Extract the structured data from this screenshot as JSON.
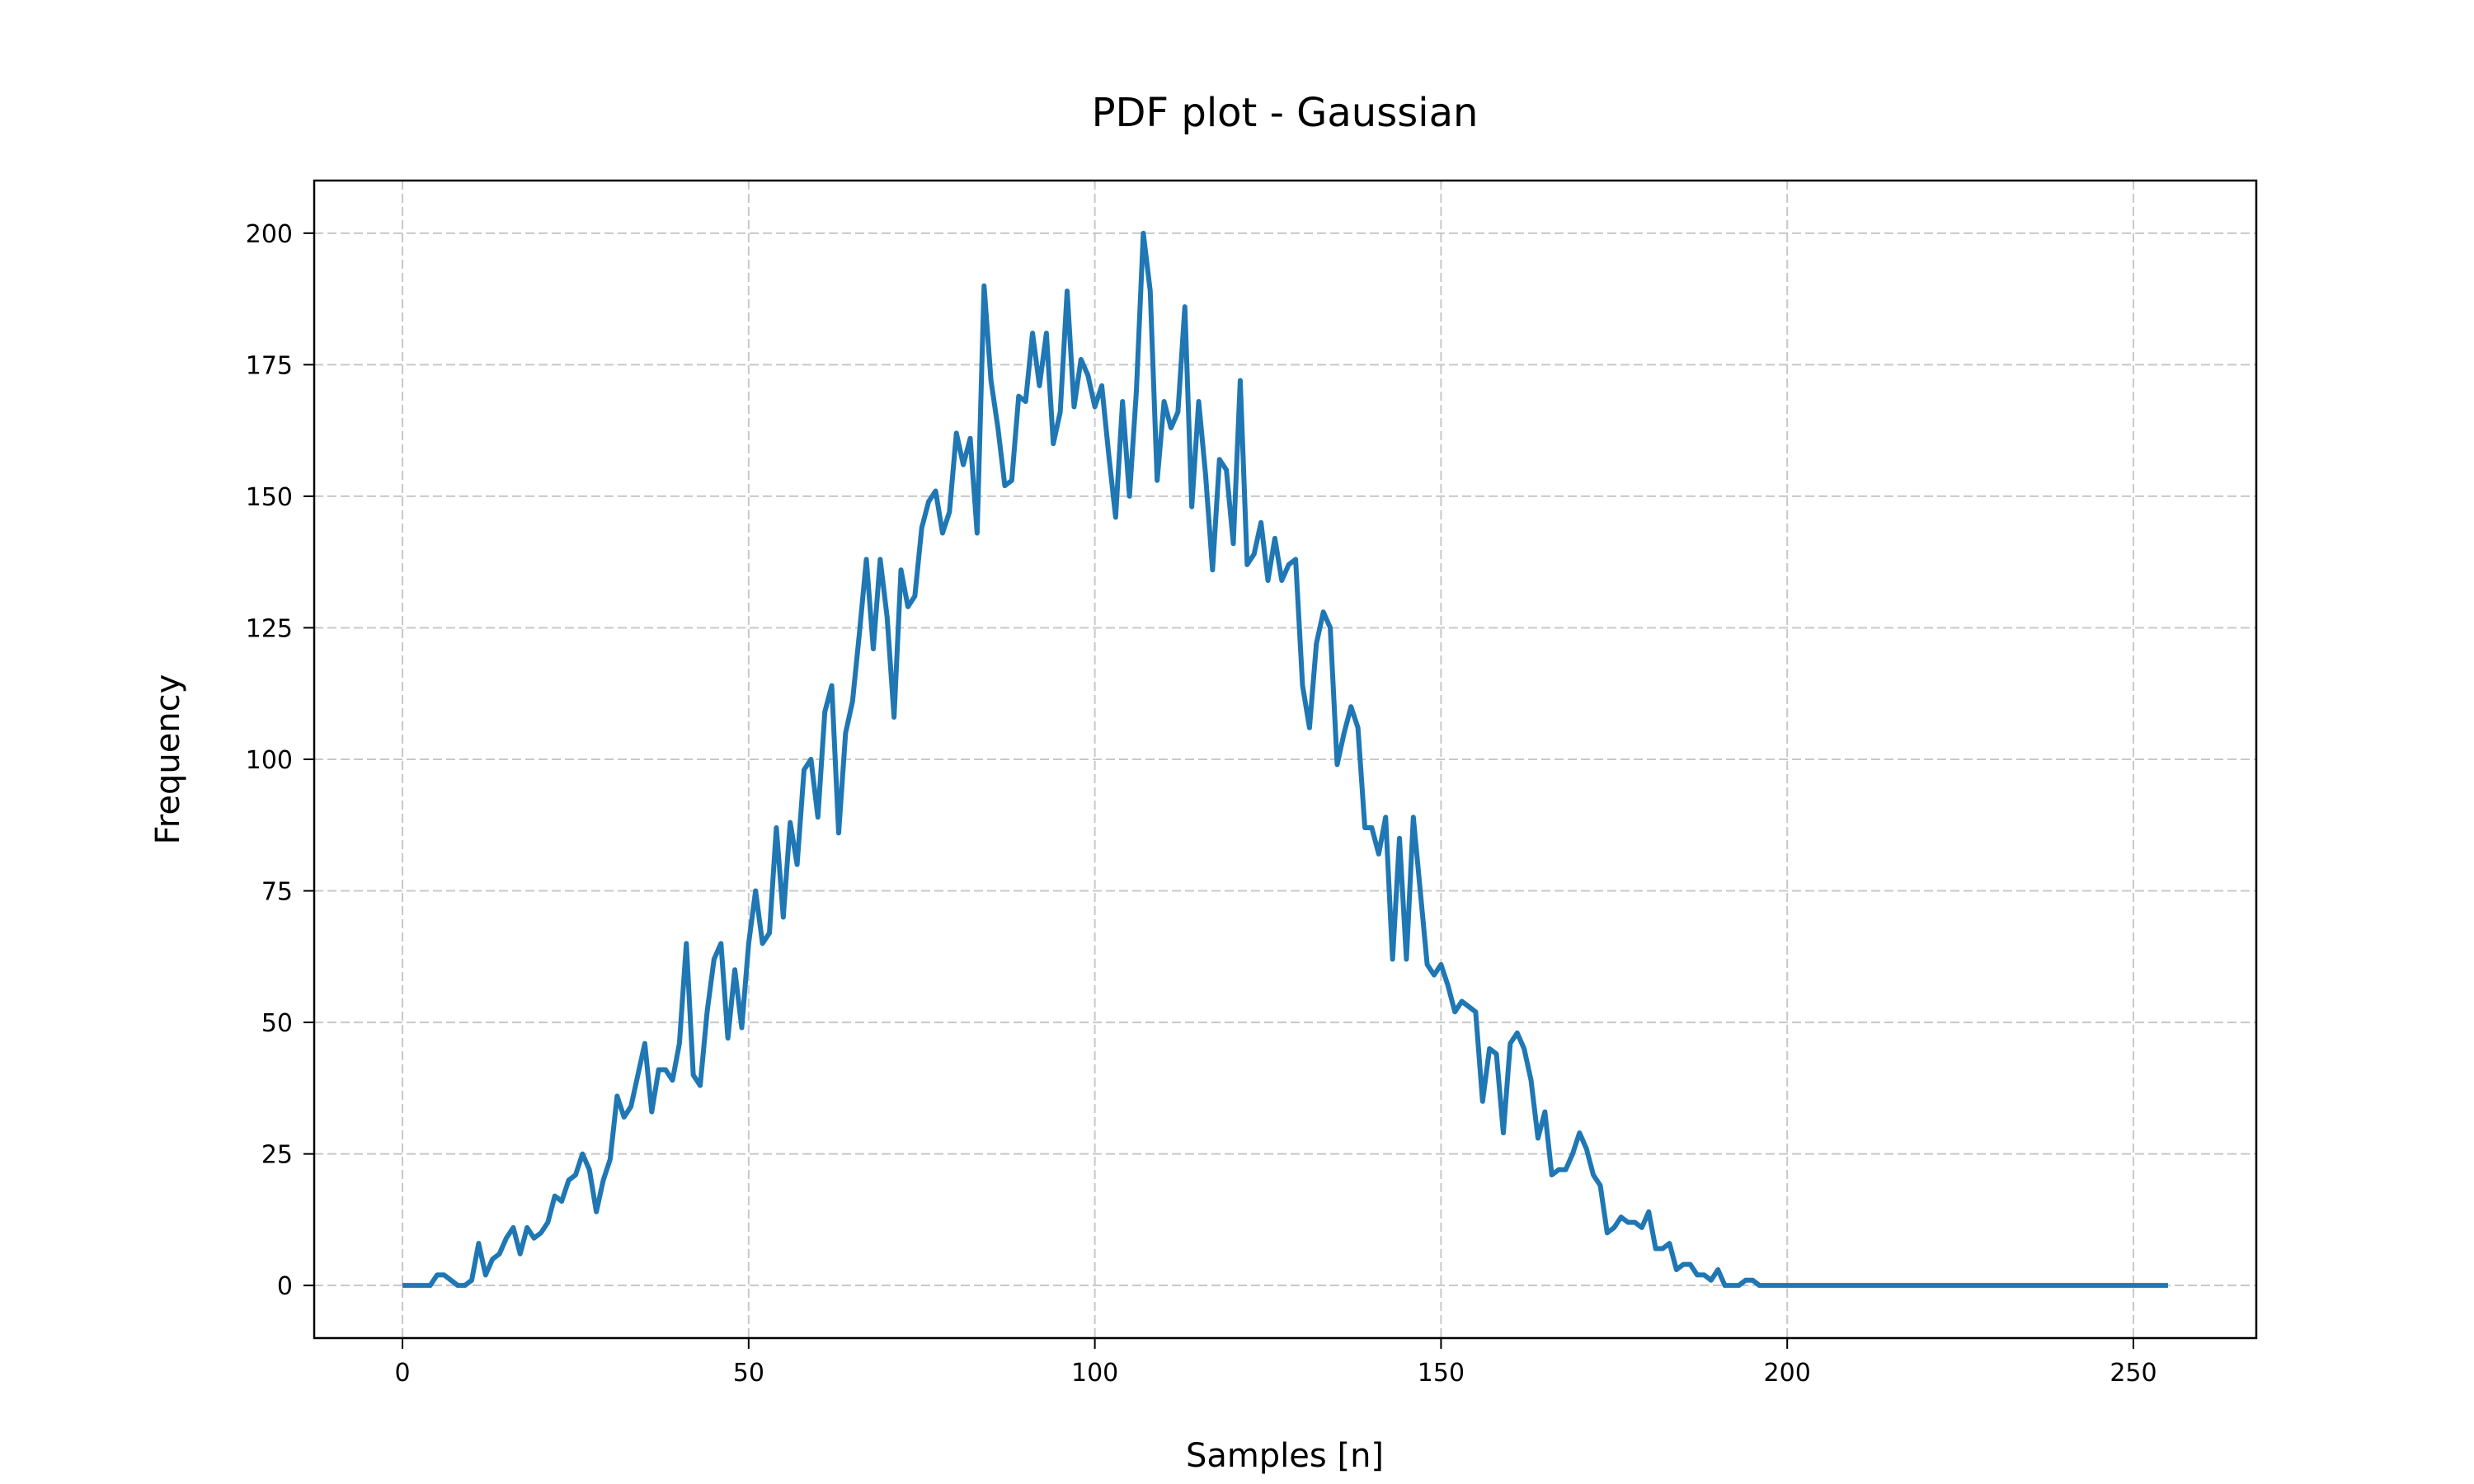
{
  "chart_data": {
    "type": "line",
    "title": "PDF plot - Gaussian",
    "xlabel": "Samples [n]",
    "ylabel": "Frequency",
    "xlim": [
      -12.75,
      267.75
    ],
    "ylim": [
      -10,
      210
    ],
    "grid": true,
    "grid_style": "dashed",
    "legend": "none",
    "line_color": "#1f77b4",
    "x_ticks": [
      0,
      50,
      100,
      150,
      200,
      250
    ],
    "y_ticks": [
      0,
      25,
      50,
      75,
      100,
      125,
      150,
      175,
      200
    ],
    "series": [
      {
        "name": "",
        "x_start": 0,
        "x_step": 1,
        "values": [
          0,
          0,
          0,
          0,
          0,
          2,
          2,
          1,
          0,
          0,
          1,
          8,
          2,
          5,
          6,
          9,
          11,
          6,
          11,
          9,
          10,
          12,
          17,
          16,
          20,
          21,
          25,
          22,
          14,
          20,
          24,
          36,
          32,
          34,
          40,
          46,
          33,
          41,
          41,
          39,
          46,
          65,
          40,
          38,
          52,
          62,
          65,
          47,
          60,
          49,
          65,
          75,
          65,
          67,
          87,
          70,
          88,
          80,
          98,
          100,
          89,
          109,
          114,
          86,
          105,
          111,
          124,
          138,
          121,
          138,
          127,
          108,
          136,
          129,
          131,
          144,
          149,
          151,
          143,
          147,
          162,
          156,
          161,
          143,
          190,
          172,
          163,
          152,
          153,
          169,
          168,
          181,
          171,
          181,
          160,
          166,
          189,
          167,
          176,
          173,
          167,
          171,
          158,
          146,
          168,
          150,
          170,
          200,
          189,
          153,
          168,
          163,
          166,
          186,
          148,
          168,
          154,
          136,
          157,
          155,
          141,
          172,
          137,
          139,
          145,
          134,
          142,
          134,
          137,
          138,
          114,
          106,
          122,
          128,
          125,
          99,
          105,
          110,
          106,
          87,
          87,
          82,
          89,
          62,
          85,
          62,
          89,
          75,
          61,
          59,
          61,
          57,
          52,
          54,
          53,
          52,
          35,
          45,
          44,
          29,
          46,
          48,
          45,
          39,
          28,
          33,
          21,
          22,
          22,
          25,
          29,
          26,
          21,
          19,
          10,
          11,
          13,
          12,
          12,
          11,
          14,
          7,
          7,
          8,
          3,
          4,
          4,
          2,
          2,
          1,
          3,
          0,
          0,
          0,
          1,
          1,
          0,
          0,
          0,
          0,
          0,
          0,
          0,
          0,
          0,
          0,
          0,
          0,
          0,
          0,
          0,
          0,
          0,
          0,
          0,
          0,
          0,
          0,
          0,
          0,
          0,
          0,
          0,
          0,
          0,
          0,
          0,
          0,
          0,
          0,
          0,
          0,
          0,
          0,
          0,
          0,
          0,
          0,
          0,
          0,
          0,
          0,
          0,
          0,
          0,
          0,
          0,
          0,
          0,
          0,
          0,
          0,
          0,
          0,
          0,
          0
        ]
      }
    ]
  }
}
